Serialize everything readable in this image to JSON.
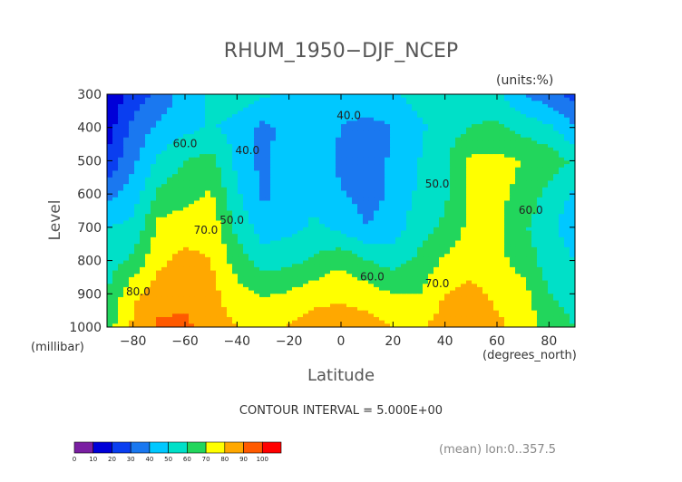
{
  "chart_data": {
    "type": "heatmap",
    "title": "RHUM_1950−DJF_NCEP",
    "units_label": "(units:%)",
    "ylabel": "Level",
    "yunits": "(millibar)",
    "xlabel": "Latitude",
    "xunits": "(degrees_north)",
    "contour_interval_text": "CONTOUR INTERVAL = 5.000E+00",
    "footer_text": "(mean) lon:0..357.5",
    "xlim": [
      -90,
      90
    ],
    "ylim": [
      1000,
      300
    ],
    "x_ticks": [
      -80,
      -60,
      -40,
      -20,
      0,
      20,
      40,
      60,
      80
    ],
    "x_tick_labels": [
      "−80",
      "−60",
      "−40",
      "−20",
      "0",
      "20",
      "40",
      "60",
      "80"
    ],
    "y_ticks": [
      300,
      400,
      500,
      600,
      700,
      800,
      900,
      1000
    ],
    "y_tick_labels": [
      "300",
      "400",
      "500",
      "600",
      "700",
      "800",
      "900",
      "1000"
    ],
    "contour_labels": [
      {
        "text": "40.0",
        "lat": 3,
        "level": 375
      },
      {
        "text": "40.0",
        "lat": -36,
        "level": 480
      },
      {
        "text": "60.0",
        "lat": -60,
        "level": 460
      },
      {
        "text": "50.0",
        "lat": -42,
        "level": 690
      },
      {
        "text": "70.0",
        "lat": -52,
        "level": 720
      },
      {
        "text": "50.0",
        "lat": 37,
        "level": 580
      },
      {
        "text": "60.0",
        "lat": 73,
        "level": 660
      },
      {
        "text": "60.0",
        "lat": 12,
        "level": 860
      },
      {
        "text": "70.0",
        "lat": 37,
        "level": 880
      },
      {
        "text": "80.0",
        "lat": -78,
        "level": 905
      }
    ],
    "legend": {
      "levels": [
        0,
        10,
        20,
        30,
        40,
        50,
        60,
        70,
        80,
        90,
        100
      ],
      "level_labels": [
        "0",
        "10",
        "20",
        "30",
        "40",
        "50",
        "60",
        "70",
        "80",
        "90",
        "100"
      ],
      "colors": [
        "#7a1fa2",
        "#0000d8",
        "#0a3ef0",
        "#1a78f0",
        "#00c8ff",
        "#00e0c8",
        "#22d65c",
        "#ffff00",
        "#ffa800",
        "#ff5a00",
        "#ff0000"
      ]
    },
    "lat": [
      -90,
      -80,
      -70,
      -60,
      -50,
      -40,
      -30,
      -20,
      -10,
      0,
      10,
      20,
      30,
      40,
      50,
      60,
      70,
      80,
      90
    ],
    "levels": [
      300,
      400,
      500,
      600,
      700,
      800,
      900,
      1000
    ],
    "values": [
      [
        10,
        25,
        33,
        44,
        52,
        55,
        52,
        48,
        46,
        47,
        47,
        49,
        54,
        56,
        56,
        52,
        40,
        34,
        27
      ],
      [
        15,
        33,
        42,
        47,
        51,
        47,
        37,
        44,
        48,
        40,
        36,
        40,
        48,
        55,
        60,
        62,
        56,
        52,
        40
      ],
      [
        22,
        38,
        52,
        60,
        63,
        47,
        37,
        46,
        48,
        37,
        37,
        41,
        50,
        58,
        72,
        72,
        70,
        66,
        58
      ],
      [
        36,
        45,
        62,
        67,
        71,
        52,
        38,
        44,
        47,
        41,
        36,
        42,
        52,
        58,
        72,
        72,
        68,
        56,
        48
      ],
      [
        50,
        52,
        73,
        75,
        77,
        57,
        45,
        47,
        52,
        47,
        40,
        45,
        56,
        62,
        73,
        72,
        62,
        52,
        45
      ],
      [
        55,
        62,
        78,
        83,
        80,
        65,
        55,
        57,
        62,
        68,
        60,
        56,
        62,
        72,
        76,
        73,
        66,
        55,
        50
      ],
      [
        60,
        78,
        85,
        88,
        83,
        74,
        69,
        71,
        76,
        78,
        75,
        70,
        70,
        80,
        83,
        78,
        74,
        60,
        55
      ],
      [
        65,
        82,
        92,
        92,
        85,
        80,
        77,
        81,
        85,
        86,
        84,
        80,
        78,
        85,
        87,
        82,
        77,
        66,
        60
      ]
    ]
  }
}
